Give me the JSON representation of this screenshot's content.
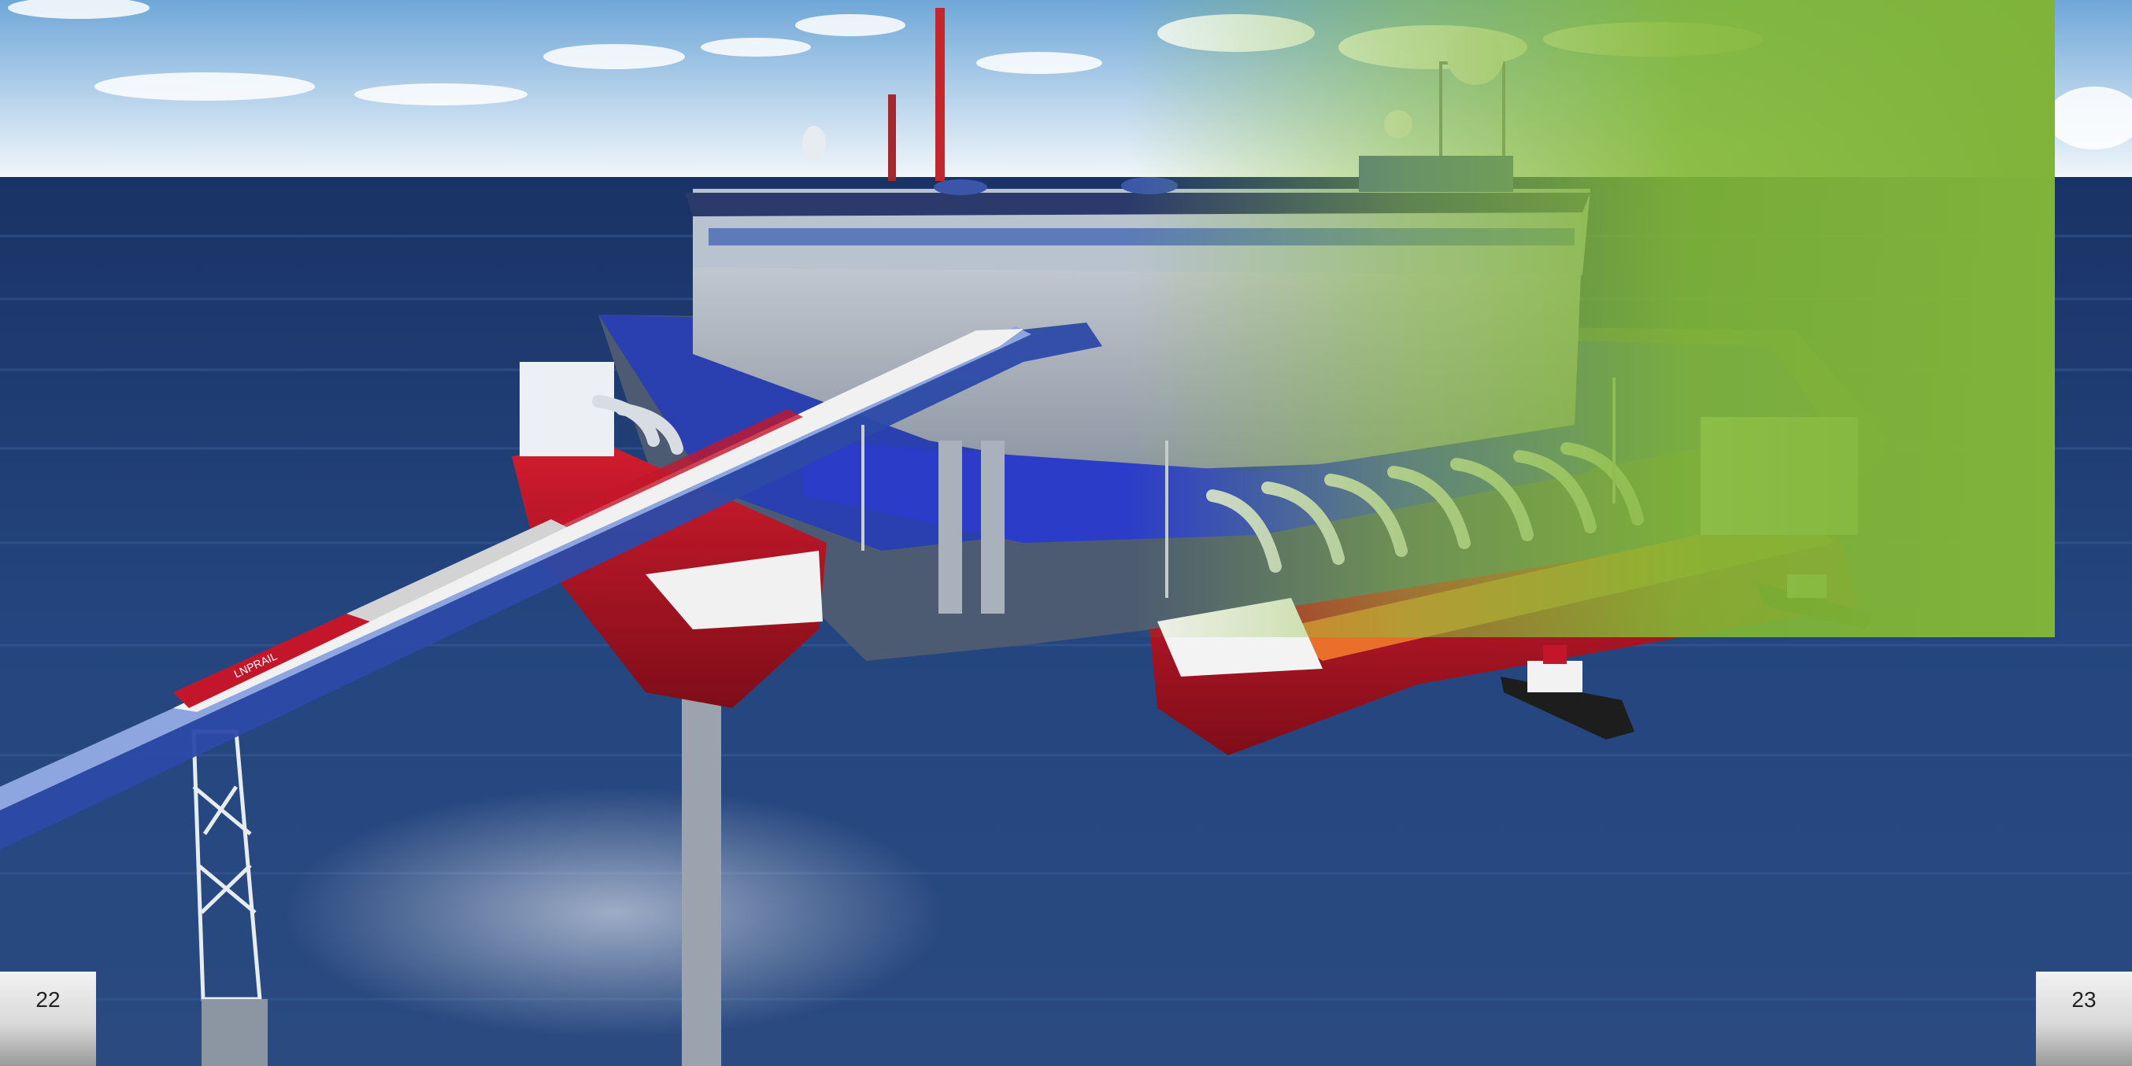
{
  "spread": {
    "left_page_number": "22",
    "right_page_number": "23"
  },
  "illustration": {
    "train_livery": "LNPRAIL",
    "colors": {
      "sky": "#cfe3f2",
      "sea": "#1f3f7a",
      "hull_red": "#c4162a",
      "deck_orange": "#e8702a",
      "terminal_blue": "#2a3fb0",
      "overlay_green": "#7fb33a"
    }
  }
}
